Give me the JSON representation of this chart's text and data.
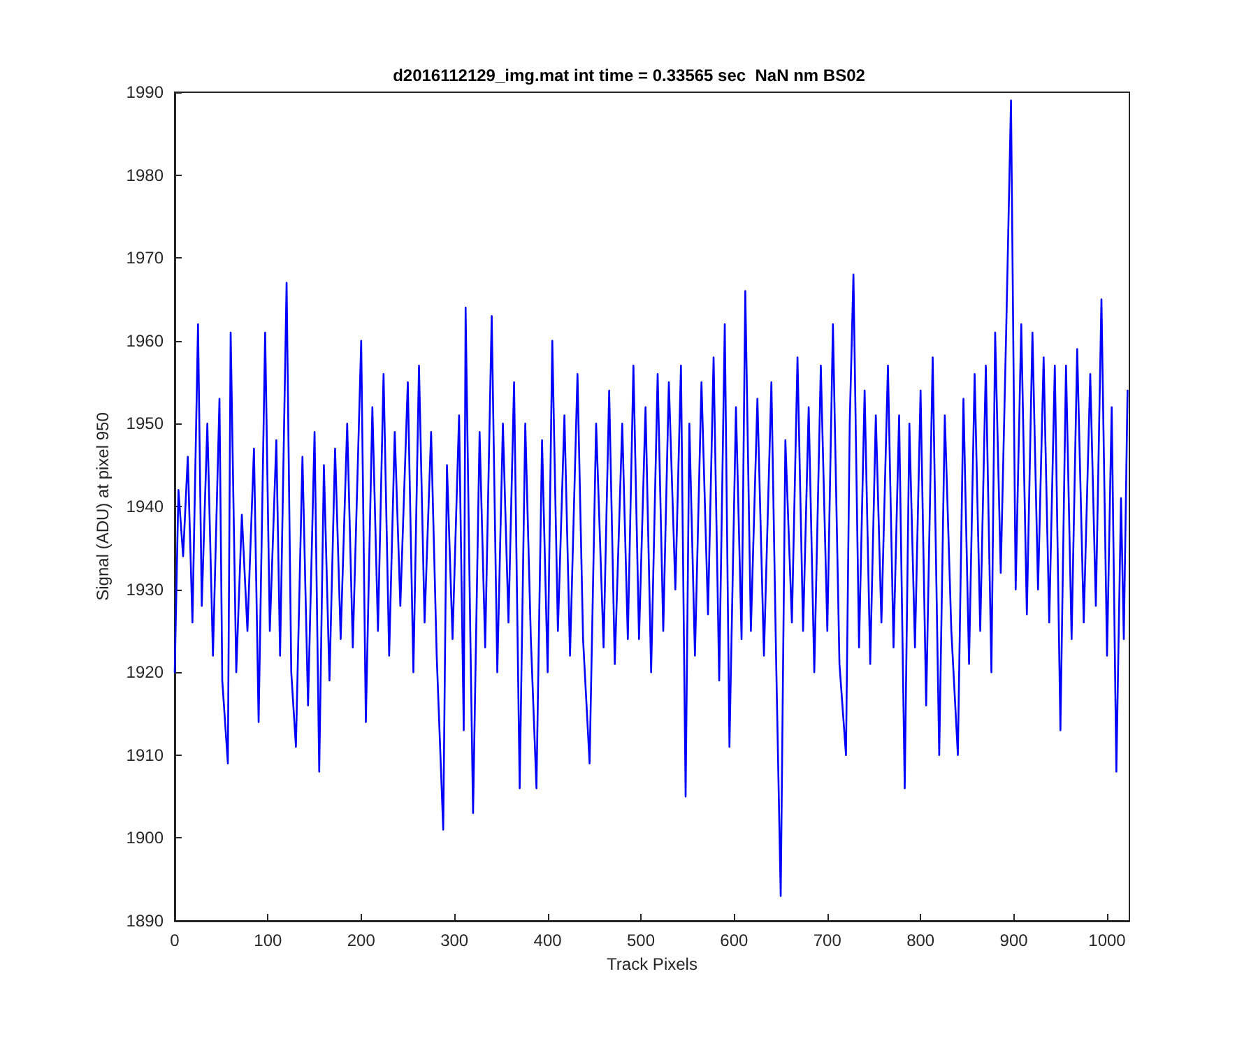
{
  "chart_data": {
    "type": "line",
    "title": "d2016112129_img.mat int time = 0.33565 sec  NaN nm BS02",
    "xlabel": "Track Pixels",
    "ylabel": "Signal (ADU) at pixel 950",
    "xlim": [
      0,
      1024
    ],
    "xticks": [
      0,
      100,
      200,
      300,
      400,
      500,
      600,
      700,
      800,
      900,
      1000
    ],
    "ylim": [
      1890,
      1990
    ],
    "yticks": [
      1890,
      1900,
      1910,
      1920,
      1930,
      1940,
      1950,
      1960,
      1970,
      1980,
      1990
    ],
    "grid": false,
    "marker": "none",
    "line_style": "solid",
    "series": [
      {
        "color": "#0000ff",
        "x": [
          0,
          4,
          9,
          14,
          19,
          25,
          29,
          35,
          41,
          48,
          51,
          57,
          60,
          66,
          72,
          78,
          85,
          90,
          97,
          102,
          109,
          113,
          120,
          125,
          130,
          137,
          143,
          150,
          155,
          160,
          166,
          172,
          178,
          185,
          191,
          200,
          205,
          212,
          218,
          224,
          230,
          236,
          242,
          250,
          256,
          262,
          268,
          275,
          281,
          288,
          292,
          298,
          305,
          310,
          312,
          317,
          320,
          327,
          333,
          340,
          346,
          352,
          358,
          364,
          370,
          376,
          382,
          388,
          394,
          400,
          405,
          411,
          418,
          424,
          432,
          438,
          445,
          452,
          460,
          466,
          472,
          480,
          486,
          492,
          498,
          505,
          511,
          518,
          524,
          530,
          537,
          543,
          548,
          552,
          558,
          565,
          572,
          578,
          584,
          590,
          595,
          602,
          608,
          612,
          618,
          625,
          632,
          640,
          645,
          650,
          655,
          662,
          668,
          674,
          680,
          686,
          693,
          700,
          706,
          713,
          720,
          724,
          728,
          734,
          740,
          746,
          752,
          758,
          765,
          771,
          777,
          783,
          788,
          794,
          800,
          806,
          813,
          820,
          826,
          833,
          840,
          846,
          852,
          858,
          864,
          870,
          876,
          880,
          886,
          892,
          897,
          902,
          908,
          914,
          920,
          926,
          932,
          938,
          944,
          950,
          956,
          962,
          968,
          975,
          982,
          988,
          994,
          1000,
          1005,
          1010,
          1015,
          1018,
          1022
        ],
        "values": [
          1920,
          1942,
          1934,
          1946,
          1926,
          1962,
          1928,
          1950,
          1922,
          1953,
          1919,
          1909,
          1961,
          1920,
          1939,
          1925,
          1947,
          1914,
          1961,
          1925,
          1948,
          1922,
          1967,
          1920,
          1911,
          1946,
          1916,
          1949,
          1908,
          1945,
          1919,
          1947,
          1924,
          1950,
          1923,
          1960,
          1914,
          1952,
          1925,
          1956,
          1922,
          1949,
          1928,
          1955,
          1920,
          1957,
          1926,
          1949,
          1922,
          1901,
          1945,
          1924,
          1951,
          1913,
          1964,
          1925,
          1903,
          1949,
          1923,
          1963,
          1920,
          1950,
          1926,
          1955,
          1906,
          1950,
          1924,
          1906,
          1948,
          1920,
          1960,
          1925,
          1951,
          1922,
          1956,
          1924,
          1909,
          1950,
          1923,
          1954,
          1921,
          1950,
          1924,
          1957,
          1924,
          1952,
          1920,
          1956,
          1925,
          1955,
          1930,
          1957,
          1905,
          1950,
          1922,
          1955,
          1927,
          1958,
          1919,
          1962,
          1911,
          1952,
          1924,
          1966,
          1925,
          1953,
          1922,
          1955,
          1922,
          1893,
          1948,
          1926,
          1958,
          1925,
          1952,
          1920,
          1957,
          1925,
          1962,
          1921,
          1910,
          1950,
          1968,
          1923,
          1954,
          1921,
          1951,
          1926,
          1957,
          1923,
          1951,
          1906,
          1950,
          1923,
          1954,
          1916,
          1958,
          1910,
          1951,
          1925,
          1910,
          1953,
          1921,
          1956,
          1925,
          1957,
          1920,
          1961,
          1932,
          1962,
          1989,
          1930,
          1962,
          1927,
          1961,
          1930,
          1958,
          1926,
          1957,
          1913,
          1957,
          1924,
          1959,
          1926,
          1956,
          1928,
          1965,
          1922,
          1952,
          1908,
          1941,
          1924,
          1954
        ]
      }
    ]
  }
}
